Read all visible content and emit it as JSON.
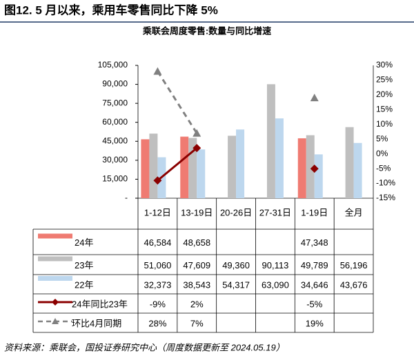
{
  "chart_data": {
    "type": "bar-line-table",
    "title": "图12. 5 月以来，乘用车零售同比下降 5%",
    "subtitle": "乘联会周度零售:数量与同比增速",
    "categories": [
      "1-12日",
      "13-19日",
      "20-26日",
      "27-31日",
      "1-19日",
      "全月"
    ],
    "ylim": [
      0,
      105000
    ],
    "yticks": [
      {
        "value": 0,
        "label": "-"
      },
      {
        "value": 15000,
        "label": "15,000"
      },
      {
        "value": 30000,
        "label": "30,000"
      },
      {
        "value": 45000,
        "label": "45,000"
      },
      {
        "value": 60000,
        "label": "60,000"
      },
      {
        "value": 75000,
        "label": "75,000"
      },
      {
        "value": 90000,
        "label": "90,000"
      },
      {
        "value": 105000,
        "label": "105,000"
      }
    ],
    "y2lim": [
      -15,
      30
    ],
    "y2ticks": [
      {
        "value": -15,
        "label": "-15%"
      },
      {
        "value": -10,
        "label": "-10%"
      },
      {
        "value": -5,
        "label": "-5%"
      },
      {
        "value": 0,
        "label": "0%"
      },
      {
        "value": 5,
        "label": "5%"
      },
      {
        "value": 10,
        "label": "10%"
      },
      {
        "value": 15,
        "label": "15%"
      },
      {
        "value": 20,
        "label": "20%"
      },
      {
        "value": 25,
        "label": "25%"
      },
      {
        "value": 30,
        "label": "30%"
      }
    ],
    "series": [
      {
        "name": "24年",
        "kind": "bar",
        "color": "#ef7b72",
        "values": [
          46584,
          48658,
          null,
          null,
          47348,
          null
        ],
        "value_labels": [
          "46,584",
          "48,658",
          null,
          null,
          "47,348",
          null
        ]
      },
      {
        "name": "23年",
        "kind": "bar",
        "color": "#bfbfbf",
        "values": [
          51060,
          47609,
          49360,
          90113,
          49789,
          56196
        ],
        "value_labels": [
          "51,060",
          "47,609",
          "49,360",
          "90,113",
          "49,789",
          "56,196"
        ]
      },
      {
        "name": "22年",
        "kind": "bar",
        "color": "#bdd7ee",
        "values": [
          32373,
          38543,
          54317,
          63090,
          34646,
          43676
        ],
        "value_labels": [
          "32,373",
          "38,543",
          "54,317",
          "63,090",
          "34,646",
          "43,676"
        ]
      },
      {
        "name": "24年同比23年",
        "kind": "line",
        "axis": "y2",
        "color": "#8b0000",
        "values": [
          -9,
          2,
          null,
          null,
          -5,
          null
        ],
        "value_labels": [
          "-9%",
          "2%",
          null,
          null,
          "-5%",
          null
        ]
      },
      {
        "name": "环比4月同期",
        "kind": "dashed",
        "axis": "y2",
        "color": "#808080",
        "values": [
          28,
          7,
          null,
          null,
          19,
          null
        ],
        "value_labels": [
          "28%",
          "7%",
          null,
          null,
          "19%",
          null
        ]
      }
    ],
    "source": "资料来源：乘联会，国投证券研究中心（周度数据更新至 2024.05.19）"
  }
}
